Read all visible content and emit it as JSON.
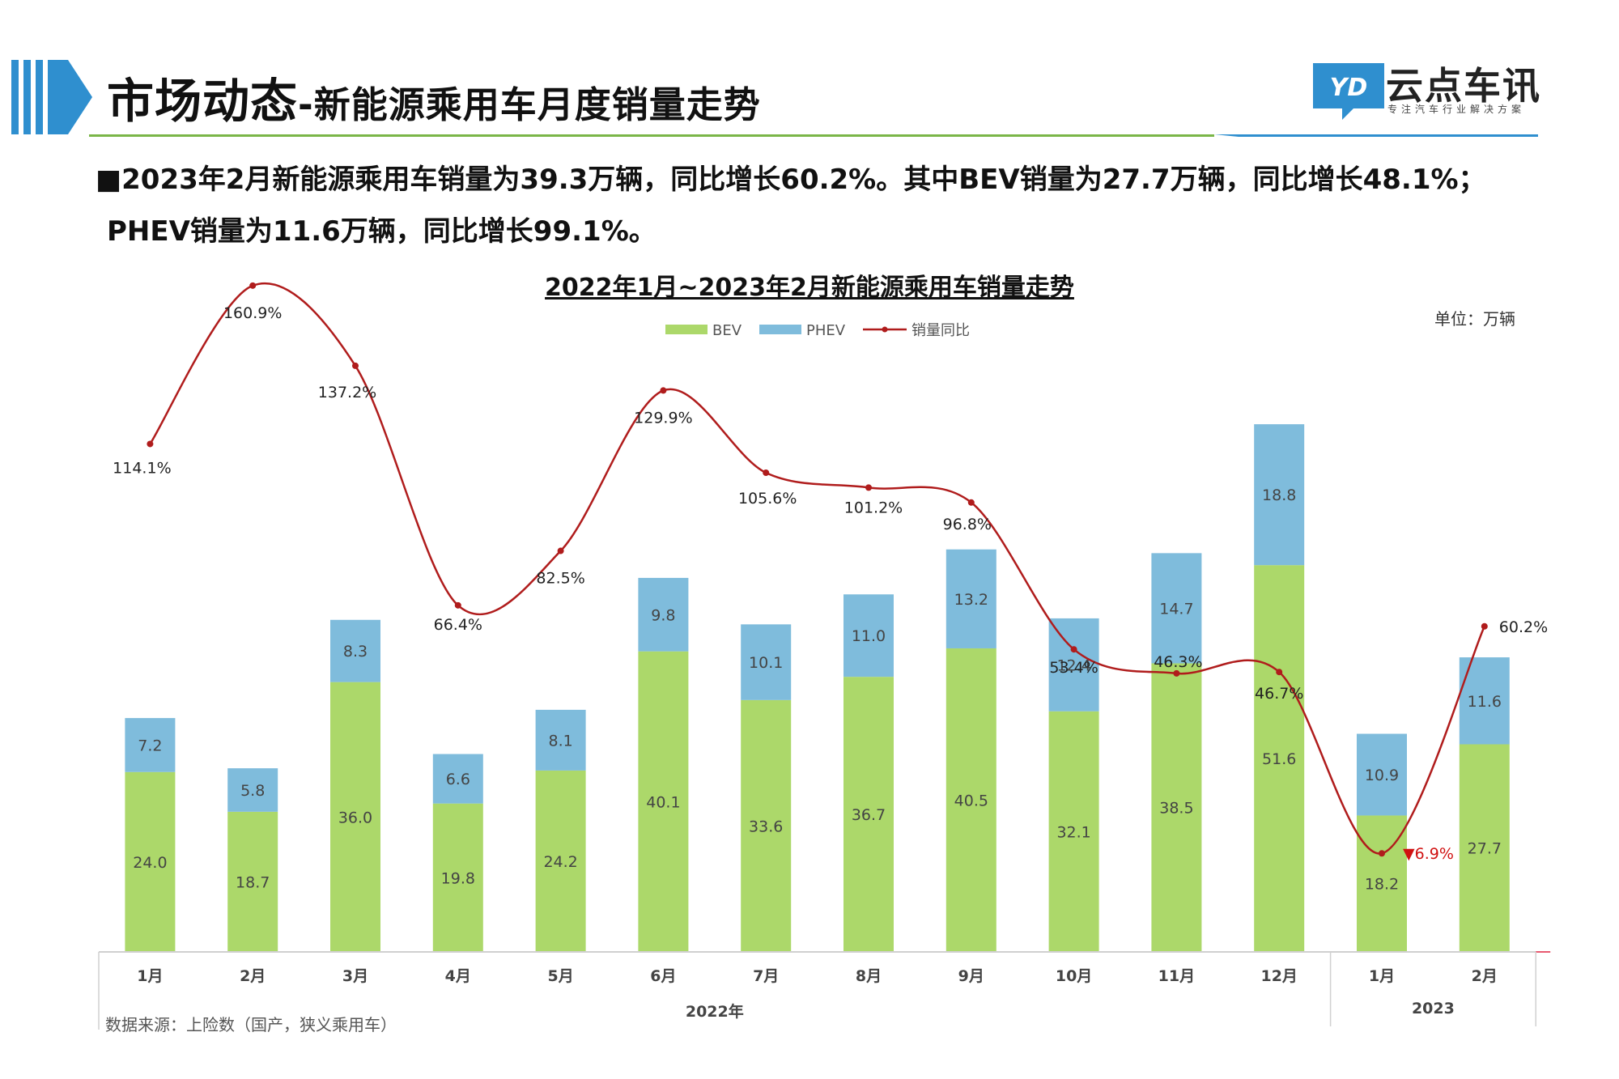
{
  "header": {
    "title_main": "市场动态",
    "title_sub": "-新能源乘用车月度销量走势",
    "logo_mark": "YD",
    "logo_name": "云点车讯",
    "logo_tagline": "专注汽车行业解决方案"
  },
  "summary": {
    "line1": "■2023年2月新能源乘用车销量为39.3万辆，同比增长60.2%。其中BEV销量为27.7万辆，同比增长48.1%；",
    "line2": "PHEV销量为11.6万辆，同比增长99.1%。"
  },
  "unit_label": "单位：万辆",
  "source_note": "数据来源：上险数（国产，狭义乘用车）",
  "colors": {
    "bev": "#acd86a",
    "phev": "#7fbcdc",
    "yoy": "#b01c1c",
    "accent": "#2f8fcf",
    "rule_green": "#7ab648"
  },
  "chart_data": {
    "type": "bar",
    "stacked": true,
    "title": "2022年1月~2023年2月新能源乘用车销量走势",
    "categories": [
      "1月",
      "2月",
      "3月",
      "4月",
      "5月",
      "6月",
      "7月",
      "8月",
      "9月",
      "10月",
      "11月",
      "12月",
      "1月",
      "2月"
    ],
    "year_groups": [
      {
        "label": "2022年",
        "count": 12
      },
      {
        "label": "2023",
        "count": 2
      }
    ],
    "series": [
      {
        "name": "BEV",
        "type": "bar",
        "values": [
          24.0,
          18.7,
          36.0,
          19.8,
          24.2,
          40.1,
          33.6,
          36.7,
          40.5,
          32.1,
          38.5,
          51.6,
          18.2,
          27.7
        ]
      },
      {
        "name": "PHEV",
        "type": "bar",
        "values": [
          7.2,
          5.8,
          8.3,
          6.6,
          8.1,
          9.8,
          10.1,
          11.0,
          13.2,
          12.4,
          14.7,
          18.8,
          10.9,
          11.6
        ]
      },
      {
        "name": "销量同比",
        "type": "line",
        "values": [
          114.1,
          160.9,
          137.2,
          66.4,
          82.5,
          129.9,
          105.6,
          101.2,
          96.8,
          53.4,
          46.3,
          46.7,
          -6.9,
          60.2
        ],
        "labels": [
          "114.1%",
          "160.9%",
          "137.2%",
          "66.4%",
          "82.5%",
          "129.9%",
          "105.6%",
          "101.2%",
          "96.8%",
          "53.4%",
          "46.3%",
          "46.7%",
          "▼6.9%",
          "60.2%"
        ]
      }
    ],
    "legend_position": "top-center",
    "grid": false
  }
}
